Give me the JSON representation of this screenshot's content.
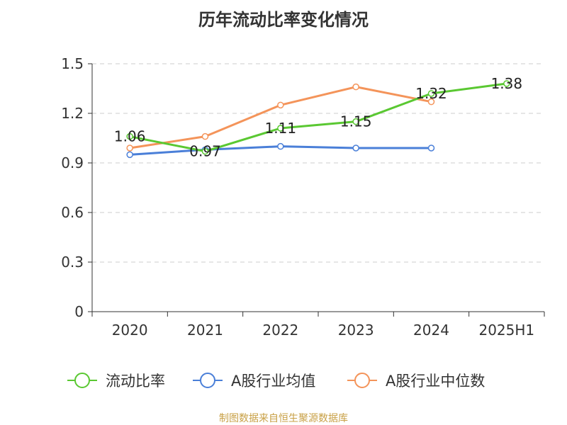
{
  "chart_data": {
    "type": "line",
    "title": "历年流动比率变化情况",
    "categories": [
      "2020",
      "2021",
      "2022",
      "2023",
      "2024",
      "2025H1"
    ],
    "ylim": [
      0,
      1.5
    ],
    "yticks": [
      "0",
      "0.3",
      "0.6",
      "0.9",
      "1.2",
      "1.5"
    ],
    "ytick_values": [
      0,
      0.3,
      0.6,
      0.9,
      1.2,
      1.5
    ],
    "grid": true,
    "legend_position": "bottom",
    "series": [
      {
        "name": "流动比率",
        "color": "#5ac832",
        "values": [
          1.06,
          0.97,
          1.11,
          1.15,
          1.32,
          1.38
        ],
        "labels": [
          "1.06",
          "0.97",
          "1.11",
          "1.15",
          "1.32",
          "1.38"
        ]
      },
      {
        "name": "A股行业均值",
        "color": "#4a7fd8",
        "values": [
          0.95,
          0.98,
          1.0,
          0.99,
          0.99,
          null
        ]
      },
      {
        "name": "A股行业中位数",
        "color": "#f4945a",
        "values": [
          0.99,
          1.06,
          1.25,
          1.36,
          1.27,
          null
        ]
      }
    ]
  },
  "footer": {
    "source": "制图数据来自恒生聚源数据库"
  }
}
